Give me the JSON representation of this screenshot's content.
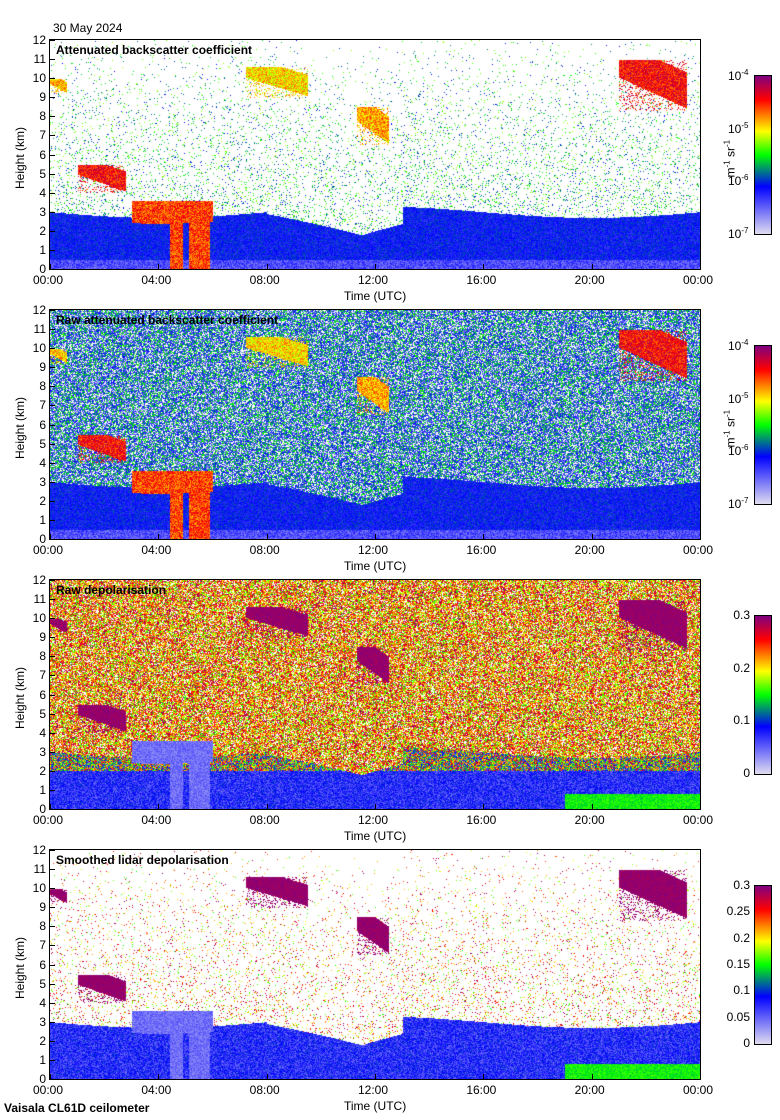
{
  "date": "30 May 2024",
  "instrument": "Vaisala CL61D ceilometer",
  "chart_data": [
    {
      "type": "heatmap",
      "title": "Attenuated backscatter coefficient",
      "xlabel": "Time (UTC)",
      "ylabel": "Height (km)",
      "xticks": [
        "00:00",
        "04:00",
        "08:00",
        "12:00",
        "16:00",
        "20:00",
        "00:00"
      ],
      "yticks": [
        "0",
        "1",
        "2",
        "3",
        "4",
        "5",
        "6",
        "7",
        "8",
        "9",
        "10",
        "11",
        "12"
      ],
      "xlim_hours": [
        0,
        24
      ],
      "ylim_km": [
        0,
        12
      ],
      "colorbar": {
        "scale": "log",
        "range": [
          1e-07,
          0.0001
        ],
        "ticks": [
          {
            "b": "10",
            "e": "-7"
          },
          {
            "b": "10",
            "e": "-6"
          },
          {
            "b": "10",
            "e": "-5"
          },
          {
            "b": "10",
            "e": "-4"
          }
        ],
        "units": "m-1 sr-1"
      },
      "background": "clear"
    },
    {
      "type": "heatmap",
      "title": "Raw attenuated backscatter coefficient",
      "xlabel": "Time (UTC)",
      "ylabel": "Height (km)",
      "xticks": [
        "00:00",
        "04:00",
        "08:00",
        "12:00",
        "16:00",
        "20:00",
        "00:00"
      ],
      "yticks": [
        "0",
        "1",
        "2",
        "3",
        "4",
        "5",
        "6",
        "7",
        "8",
        "9",
        "10",
        "11",
        "12"
      ],
      "xlim_hours": [
        0,
        24
      ],
      "ylim_km": [
        0,
        12
      ],
      "colorbar": {
        "scale": "log",
        "range": [
          1e-07,
          0.0001
        ],
        "ticks": [
          {
            "b": "10",
            "e": "-7"
          },
          {
            "b": "10",
            "e": "-6"
          },
          {
            "b": "10",
            "e": "-5"
          },
          {
            "b": "10",
            "e": "-4"
          }
        ],
        "units": "m-1 sr-1"
      },
      "background": "noisy"
    },
    {
      "type": "heatmap",
      "title": "Raw depolarisation",
      "xlabel": "Time (UTC)",
      "ylabel": "Height (km)",
      "xticks": [
        "00:00",
        "04:00",
        "08:00",
        "12:00",
        "16:00",
        "20:00",
        "00:00"
      ],
      "yticks": [
        "0",
        "1",
        "2",
        "3",
        "4",
        "5",
        "6",
        "7",
        "8",
        "9",
        "10",
        "11",
        "12"
      ],
      "xlim_hours": [
        0,
        24
      ],
      "ylim_km": [
        0,
        12
      ],
      "colorbar": {
        "scale": "linear",
        "range": [
          0,
          0.3
        ],
        "ticks": [
          "0",
          "0.1",
          "0.2",
          "0.3"
        ],
        "units": ""
      },
      "background": "depol-noisy"
    },
    {
      "type": "heatmap",
      "title": "Smoothed lidar depolarisation",
      "xlabel": "Time (UTC)",
      "ylabel": "Height (km)",
      "xticks": [
        "00:00",
        "04:00",
        "08:00",
        "12:00",
        "16:00",
        "20:00",
        "00:00"
      ],
      "yticks": [
        "0",
        "1",
        "2",
        "3",
        "4",
        "5",
        "6",
        "7",
        "8",
        "9",
        "10",
        "11",
        "12"
      ],
      "xlim_hours": [
        0,
        24
      ],
      "ylim_km": [
        0,
        12
      ],
      "colorbar": {
        "scale": "linear",
        "range": [
          0,
          0.3
        ],
        "ticks": [
          "0",
          "0.05",
          "0.1",
          "0.15",
          "0.2",
          "0.25",
          "0.3"
        ],
        "units": ""
      },
      "background": "depol-clear"
    }
  ],
  "features": {
    "boundary_layer_top_km": 3,
    "clouds": [
      {
        "start_h": 0.0,
        "end_h": 0.6,
        "base_km": 9.2,
        "top_km": 10.0,
        "level": 0.7
      },
      {
        "start_h": 1.0,
        "end_h": 2.8,
        "base_km": 4.0,
        "top_km": 5.5,
        "level": 0.85
      },
      {
        "start_h": 7.2,
        "end_h": 9.5,
        "base_km": 9.0,
        "top_km": 10.6,
        "level": 0.68
      },
      {
        "start_h": 11.3,
        "end_h": 12.5,
        "base_km": 6.5,
        "top_km": 8.5,
        "level": 0.72
      },
      {
        "start_h": 21.0,
        "end_h": 23.5,
        "base_km": 8.3,
        "top_km": 11.0,
        "level": 0.85
      },
      {
        "start_h": 3.0,
        "end_h": 6.0,
        "base_km": 0.0,
        "top_km": 3.6,
        "level": 0.8
      }
    ]
  }
}
